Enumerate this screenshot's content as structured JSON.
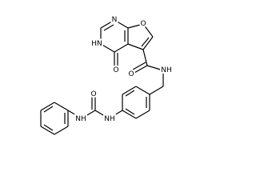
{
  "labels": [
    "N",
    "O",
    "HN",
    "O",
    "O",
    "NH",
    "NH",
    "O",
    "NH"
  ]
}
